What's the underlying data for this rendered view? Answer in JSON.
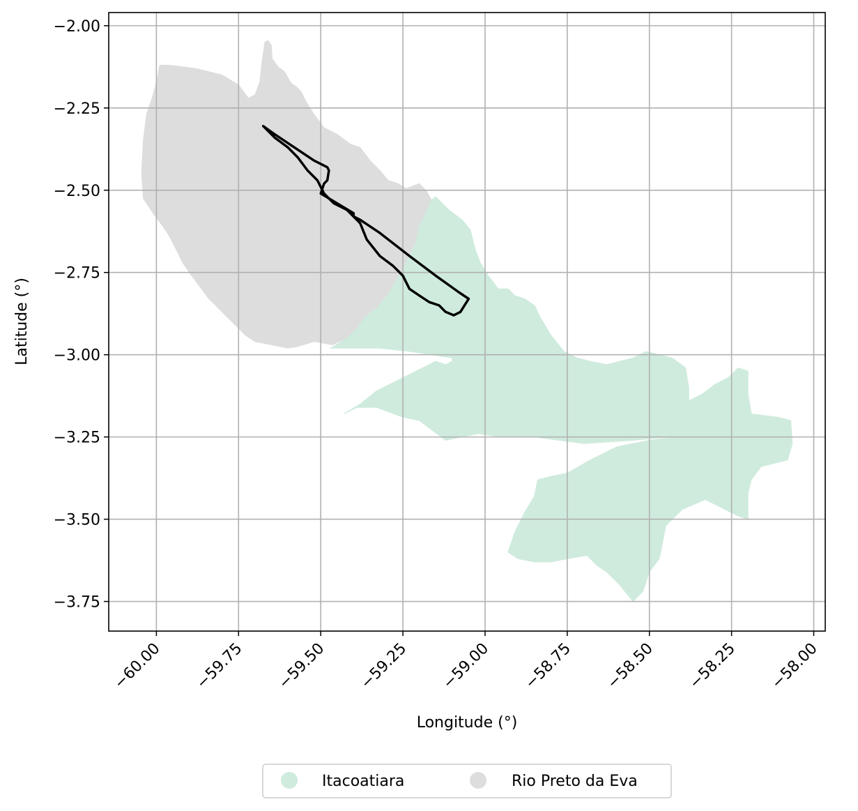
{
  "chart_data": {
    "type": "map",
    "xlabel": "Longitude (°)",
    "ylabel": "Latitude (°)",
    "xlim": [
      -60.145,
      -57.965
    ],
    "ylim": [
      -3.84,
      -1.96
    ],
    "x_ticks": [
      -60.0,
      -59.75,
      -59.5,
      -59.25,
      -59.0,
      -58.75,
      -58.5,
      -58.25,
      -58.0
    ],
    "x_tick_labels": [
      "−60.00",
      "−59.75",
      "−59.50",
      "−59.25",
      "−59.00",
      "−58.75",
      "−58.50",
      "−58.25",
      "−58.00"
    ],
    "y_ticks": [
      -2.0,
      -2.25,
      -2.5,
      -2.75,
      -3.0,
      -3.25,
      -3.5,
      -3.75
    ],
    "y_tick_labels": [
      "−2.00",
      "−2.25",
      "−2.50",
      "−2.75",
      "−3.00",
      "−3.25",
      "−3.50",
      "−3.75"
    ],
    "grid": true,
    "legend_placement": "bottom-center",
    "legend": [
      {
        "label": "Itacoatiara",
        "color": "#cfebdd"
      },
      {
        "label": "Rio Preto da Eva",
        "color": "#dddddd"
      }
    ],
    "regions": [
      {
        "name": "Rio Preto da Eva",
        "color": "#dddddd",
        "coords": [
          [
            -59.67,
            -2.05
          ],
          [
            -59.66,
            -2.045
          ],
          [
            -59.65,
            -2.06
          ],
          [
            -59.648,
            -2.1
          ],
          [
            -59.63,
            -2.125
          ],
          [
            -59.61,
            -2.14
          ],
          [
            -59.59,
            -2.175
          ],
          [
            -59.575,
            -2.185
          ],
          [
            -59.56,
            -2.2
          ],
          [
            -59.545,
            -2.23
          ],
          [
            -59.52,
            -2.27
          ],
          [
            -59.49,
            -2.31
          ],
          [
            -59.45,
            -2.33
          ],
          [
            -59.41,
            -2.36
          ],
          [
            -59.38,
            -2.37
          ],
          [
            -59.35,
            -2.41
          ],
          [
            -59.32,
            -2.44
          ],
          [
            -59.295,
            -2.47
          ],
          [
            -59.265,
            -2.48
          ],
          [
            -59.24,
            -2.495
          ],
          [
            -59.2,
            -2.48
          ],
          [
            -59.18,
            -2.5
          ],
          [
            -59.163,
            -2.53
          ],
          [
            -59.18,
            -2.57
          ],
          [
            -59.2,
            -2.61
          ],
          [
            -59.21,
            -2.66
          ],
          [
            -59.25,
            -2.74
          ],
          [
            -59.29,
            -2.81
          ],
          [
            -59.33,
            -2.86
          ],
          [
            -59.36,
            -2.88
          ],
          [
            -59.39,
            -2.92
          ],
          [
            -59.42,
            -2.95
          ],
          [
            -59.465,
            -2.97
          ],
          [
            -59.52,
            -2.96
          ],
          [
            -59.57,
            -2.975
          ],
          [
            -59.6,
            -2.98
          ],
          [
            -59.65,
            -2.97
          ],
          [
            -59.7,
            -2.96
          ],
          [
            -59.73,
            -2.94
          ],
          [
            -59.76,
            -2.91
          ],
          [
            -59.79,
            -2.88
          ],
          [
            -59.82,
            -2.85
          ],
          [
            -59.84,
            -2.83
          ],
          [
            -59.87,
            -2.79
          ],
          [
            -59.9,
            -2.75
          ],
          [
            -59.92,
            -2.72
          ],
          [
            -59.94,
            -2.68
          ],
          [
            -59.96,
            -2.64
          ],
          [
            -59.98,
            -2.61
          ],
          [
            -60.01,
            -2.57
          ],
          [
            -60.03,
            -2.54
          ],
          [
            -60.04,
            -2.525
          ],
          [
            -60.045,
            -2.45
          ],
          [
            -60.04,
            -2.35
          ],
          [
            -60.03,
            -2.27
          ],
          [
            -60.01,
            -2.21
          ],
          [
            -59.995,
            -2.15
          ],
          [
            -59.99,
            -2.12
          ],
          [
            -59.96,
            -2.12
          ],
          [
            -59.92,
            -2.125
          ],
          [
            -59.88,
            -2.13
          ],
          [
            -59.84,
            -2.14
          ],
          [
            -59.8,
            -2.15
          ],
          [
            -59.775,
            -2.165
          ],
          [
            -59.75,
            -2.18
          ],
          [
            -59.72,
            -2.22
          ],
          [
            -59.7,
            -2.21
          ],
          [
            -59.685,
            -2.17
          ],
          [
            -59.68,
            -2.12
          ],
          [
            -59.67,
            -2.05
          ]
        ]
      },
      {
        "name": "Itacoatiara",
        "color": "#cfebdd",
        "coords": [
          [
            -59.15,
            -2.52
          ],
          [
            -59.11,
            -2.56
          ],
          [
            -59.07,
            -2.59
          ],
          [
            -59.045,
            -2.62
          ],
          [
            -59.03,
            -2.68
          ],
          [
            -59.015,
            -2.72
          ],
          [
            -58.99,
            -2.76
          ],
          [
            -58.96,
            -2.8
          ],
          [
            -58.93,
            -2.8
          ],
          [
            -58.91,
            -2.82
          ],
          [
            -58.88,
            -2.83
          ],
          [
            -58.85,
            -2.85
          ],
          [
            -58.83,
            -2.89
          ],
          [
            -58.8,
            -2.94
          ],
          [
            -58.76,
            -2.99
          ],
          [
            -58.72,
            -3.01
          ],
          [
            -58.68,
            -3.02
          ],
          [
            -58.63,
            -3.03
          ],
          [
            -58.59,
            -3.02
          ],
          [
            -58.55,
            -3.01
          ],
          [
            -58.51,
            -2.99
          ],
          [
            -58.47,
            -3.0
          ],
          [
            -58.43,
            -3.01
          ],
          [
            -58.39,
            -3.04
          ],
          [
            -58.38,
            -3.1
          ],
          [
            -58.38,
            -3.14
          ],
          [
            -58.34,
            -3.12
          ],
          [
            -58.3,
            -3.09
          ],
          [
            -58.26,
            -3.07
          ],
          [
            -58.23,
            -3.04
          ],
          [
            -58.2,
            -3.05
          ],
          [
            -58.2,
            -3.12
          ],
          [
            -58.19,
            -3.18
          ],
          [
            -58.11,
            -3.19
          ],
          [
            -58.07,
            -3.2
          ],
          [
            -58.065,
            -3.27
          ],
          [
            -58.08,
            -3.32
          ],
          [
            -58.12,
            -3.33
          ],
          [
            -58.16,
            -3.34
          ],
          [
            -58.19,
            -3.38
          ],
          [
            -58.2,
            -3.42
          ],
          [
            -58.2,
            -3.5
          ],
          [
            -58.23,
            -3.49
          ],
          [
            -58.33,
            -3.44
          ],
          [
            -58.4,
            -3.47
          ],
          [
            -58.45,
            -3.52
          ],
          [
            -58.46,
            -3.57
          ],
          [
            -58.47,
            -3.62
          ],
          [
            -58.5,
            -3.66
          ],
          [
            -58.52,
            -3.72
          ],
          [
            -58.55,
            -3.75
          ],
          [
            -58.59,
            -3.7
          ],
          [
            -58.63,
            -3.66
          ],
          [
            -58.66,
            -3.64
          ],
          [
            -58.69,
            -3.61
          ],
          [
            -58.75,
            -3.62
          ],
          [
            -58.8,
            -3.63
          ],
          [
            -58.85,
            -3.63
          ],
          [
            -58.9,
            -3.62
          ],
          [
            -58.93,
            -3.6
          ],
          [
            -58.91,
            -3.54
          ],
          [
            -58.88,
            -3.48
          ],
          [
            -58.85,
            -3.43
          ],
          [
            -58.84,
            -3.38
          ],
          [
            -58.8,
            -3.37
          ],
          [
            -58.75,
            -3.36
          ],
          [
            -58.68,
            -3.32
          ],
          [
            -58.6,
            -3.28
          ],
          [
            -58.5,
            -3.26
          ],
          [
            -58.42,
            -3.25
          ],
          [
            -58.38,
            -3.25
          ],
          [
            -58.44,
            -3.25
          ],
          [
            -58.55,
            -3.26
          ],
          [
            -58.7,
            -3.27
          ],
          [
            -58.85,
            -3.25
          ],
          [
            -58.95,
            -3.25
          ],
          [
            -59.02,
            -3.24
          ],
          [
            -59.12,
            -3.26
          ],
          [
            -59.2,
            -3.2
          ],
          [
            -59.25,
            -3.19
          ],
          [
            -59.33,
            -3.16
          ],
          [
            -59.39,
            -3.16
          ],
          [
            -59.43,
            -3.18
          ],
          [
            -59.38,
            -3.15
          ],
          [
            -59.33,
            -3.11
          ],
          [
            -59.27,
            -3.08
          ],
          [
            -59.23,
            -3.06
          ],
          [
            -59.19,
            -3.04
          ],
          [
            -59.15,
            -3.02
          ],
          [
            -59.12,
            -3.03
          ],
          [
            -59.1,
            -3.02
          ],
          [
            -59.1,
            -3.01
          ],
          [
            -59.16,
            -3.0
          ],
          [
            -59.23,
            -2.99
          ],
          [
            -59.32,
            -2.98
          ],
          [
            -59.41,
            -2.98
          ],
          [
            -59.47,
            -2.98
          ],
          [
            -59.42,
            -2.95
          ],
          [
            -59.39,
            -2.92
          ],
          [
            -59.36,
            -2.88
          ],
          [
            -59.33,
            -2.86
          ],
          [
            -59.29,
            -2.81
          ],
          [
            -59.25,
            -2.74
          ],
          [
            -59.21,
            -2.66
          ],
          [
            -59.2,
            -2.61
          ],
          [
            -59.18,
            -2.57
          ],
          [
            -59.163,
            -2.53
          ],
          [
            -59.15,
            -2.52
          ]
        ]
      }
    ],
    "outline": {
      "color": "#000000",
      "coords": [
        [
          -59.675,
          -2.305
        ],
        [
          -59.64,
          -2.34
        ],
        [
          -59.6,
          -2.37
        ],
        [
          -59.57,
          -2.4
        ],
        [
          -59.54,
          -2.44
        ],
        [
          -59.51,
          -2.47
        ],
        [
          -59.49,
          -2.51
        ],
        [
          -59.46,
          -2.54
        ],
        [
          -59.42,
          -2.56
        ],
        [
          -59.38,
          -2.6
        ],
        [
          -59.36,
          -2.65
        ],
        [
          -59.32,
          -2.7
        ],
        [
          -59.28,
          -2.73
        ],
        [
          -59.25,
          -2.76
        ],
        [
          -59.23,
          -2.8
        ],
        [
          -59.2,
          -2.82
        ],
        [
          -59.17,
          -2.84
        ],
        [
          -59.14,
          -2.85
        ],
        [
          -59.12,
          -2.87
        ],
        [
          -59.095,
          -2.88
        ],
        [
          -59.075,
          -2.87
        ],
        [
          -59.05,
          -2.83
        ],
        [
          -59.08,
          -2.81
        ],
        [
          -59.15,
          -2.76
        ],
        [
          -59.23,
          -2.7
        ],
        [
          -59.32,
          -2.63
        ],
        [
          -59.38,
          -2.59
        ],
        [
          -59.4,
          -2.58
        ],
        [
          -59.4,
          -2.57
        ],
        [
          -59.45,
          -2.54
        ],
        [
          -59.5,
          -2.51
        ],
        [
          -59.49,
          -2.48
        ],
        [
          -59.48,
          -2.47
        ],
        [
          -59.475,
          -2.44
        ],
        [
          -59.48,
          -2.43
        ],
        [
          -59.52,
          -2.41
        ],
        [
          -59.58,
          -2.37
        ],
        [
          -59.64,
          -2.33
        ],
        [
          -59.675,
          -2.305
        ]
      ]
    }
  }
}
